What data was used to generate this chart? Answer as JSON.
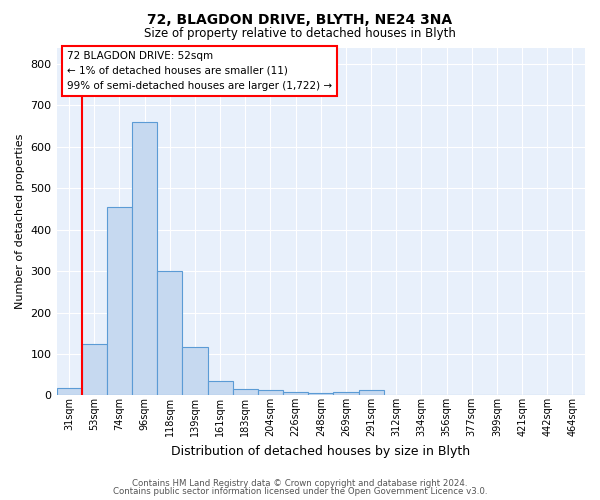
{
  "title": "72, BLAGDON DRIVE, BLYTH, NE24 3NA",
  "subtitle": "Size of property relative to detached houses in Blyth",
  "xlabel": "Distribution of detached houses by size in Blyth",
  "ylabel": "Number of detached properties",
  "bin_labels": [
    "31sqm",
    "53sqm",
    "74sqm",
    "96sqm",
    "118sqm",
    "139sqm",
    "161sqm",
    "183sqm",
    "204sqm",
    "226sqm",
    "248sqm",
    "269sqm",
    "291sqm",
    "312sqm",
    "334sqm",
    "356sqm",
    "377sqm",
    "399sqm",
    "421sqm",
    "442sqm",
    "464sqm"
  ],
  "bar_heights": [
    18,
    125,
    455,
    660,
    300,
    118,
    35,
    15,
    12,
    8,
    5,
    8,
    12,
    0,
    0,
    0,
    0,
    0,
    0,
    0,
    0
  ],
  "bar_color": "#c6d9f0",
  "bar_edge_color": "#5b9bd5",
  "bar_width": 1.0,
  "ylim": [
    0,
    840
  ],
  "yticks": [
    0,
    100,
    200,
    300,
    400,
    500,
    600,
    700,
    800
  ],
  "red_line_x": 1,
  "annotation_title": "72 BLAGDON DRIVE: 52sqm",
  "annotation_line1": "← 1% of detached houses are smaller (11)",
  "annotation_line2": "99% of semi-detached houses are larger (1,722) →",
  "footer_line1": "Contains HM Land Registry data © Crown copyright and database right 2024.",
  "footer_line2": "Contains public sector information licensed under the Open Government Licence v3.0.",
  "plot_bg_color": "#e8f0fb"
}
